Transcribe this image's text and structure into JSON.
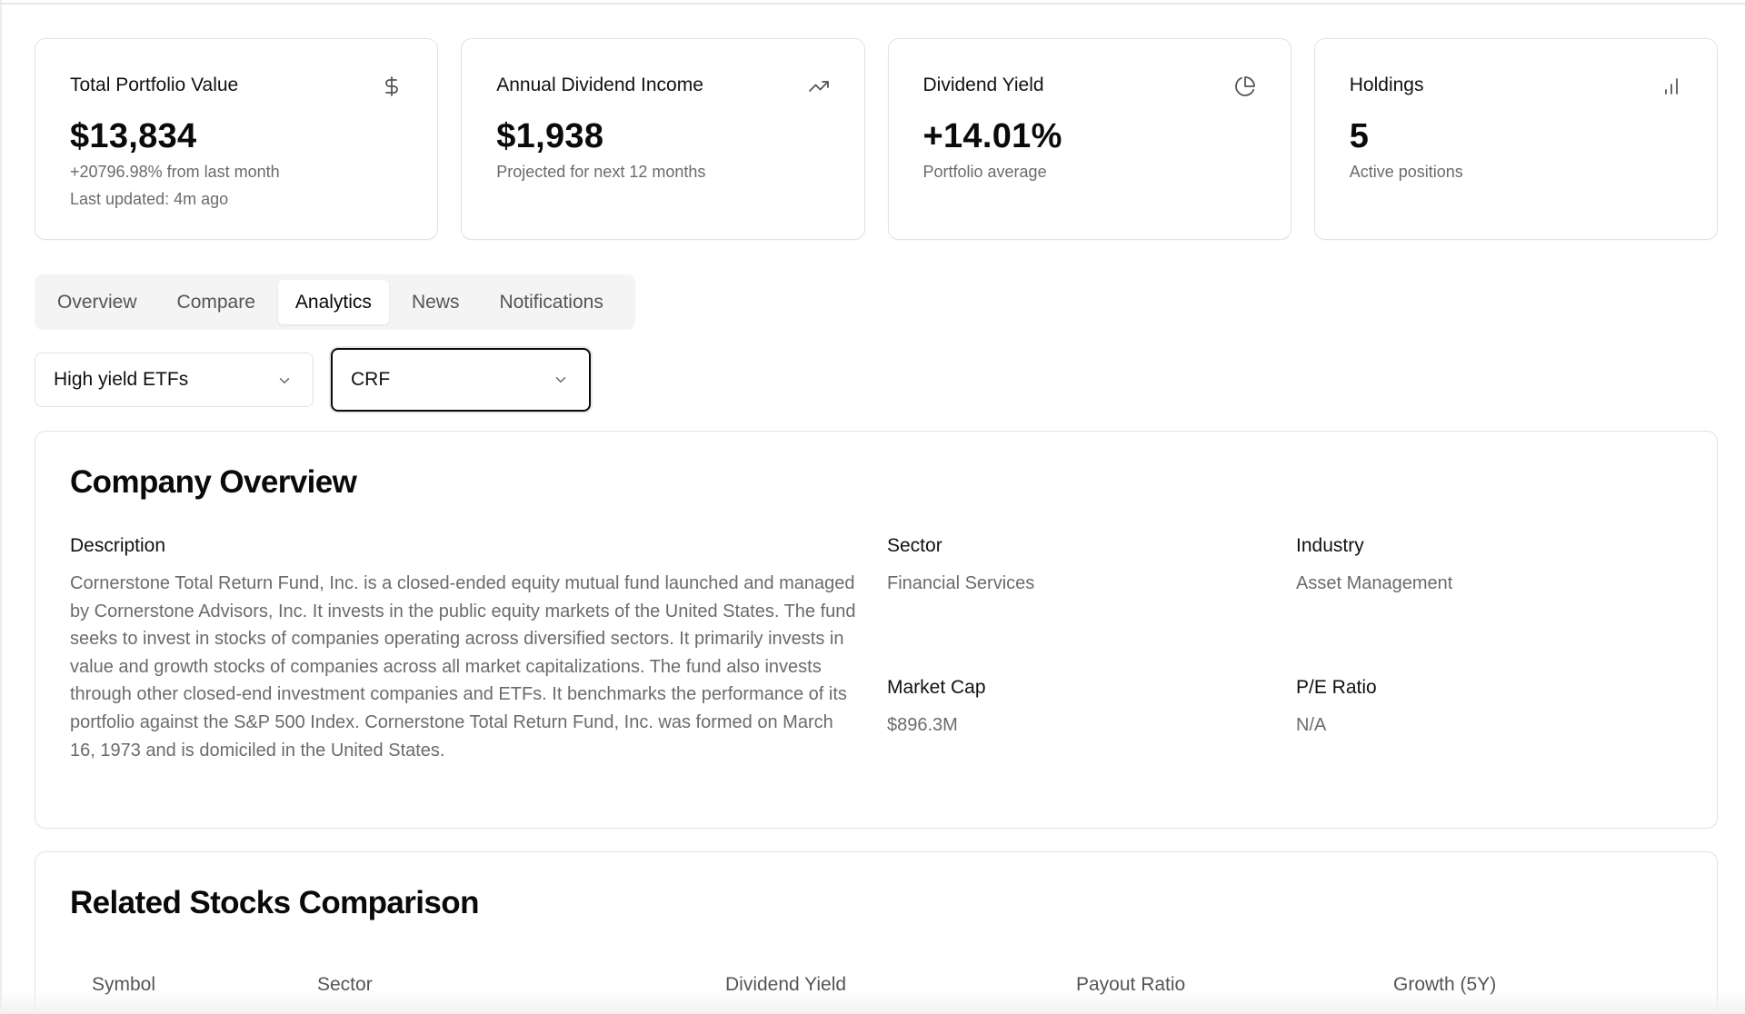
{
  "stats": [
    {
      "title": "Total Portfolio Value",
      "icon": "dollar-icon",
      "value": "$13,834",
      "sub": "+20796.98% from last month",
      "sub2": "Last updated: 4m ago"
    },
    {
      "title": "Annual Dividend Income",
      "icon": "trending-up-icon",
      "value": "$1,938",
      "sub": "Projected for next 12 months"
    },
    {
      "title": "Dividend Yield",
      "icon": "pie-chart-icon",
      "value": "+14.01%",
      "sub": "Portfolio average"
    },
    {
      "title": "Holdings",
      "icon": "bar-chart-icon",
      "value": "5",
      "sub": "Active positions"
    }
  ],
  "tabs": [
    {
      "label": "Overview",
      "active": false
    },
    {
      "label": "Compare",
      "active": false
    },
    {
      "label": "Analytics",
      "active": true
    },
    {
      "label": "News",
      "active": false
    },
    {
      "label": "Notifications",
      "active": false
    }
  ],
  "filters": {
    "list_select": "High yield ETFs",
    "symbol_select": "CRF"
  },
  "overview": {
    "title": "Company Overview",
    "description_label": "Description",
    "description": "Cornerstone Total Return Fund, Inc. is a closed-ended equity mutual fund launched and managed by Cornerstone Advisors, Inc. It invests in the public equity markets of the United States. The fund seeks to invest in stocks of companies operating across diversified sectors. It primarily invests in value and growth stocks of companies across all market capitalizations. The fund also invests through other closed-end investment companies and ETFs. It benchmarks the performance of its portfolio against the S&P 500 Index. Cornerstone Total Return Fund, Inc. was formed on March 16, 1973 and is domiciled in the United States.",
    "sector_label": "Sector",
    "sector": "Financial Services",
    "industry_label": "Industry",
    "industry": "Asset Management",
    "market_cap_label": "Market Cap",
    "market_cap": "$896.3M",
    "pe_label": "P/E Ratio",
    "pe": "N/A"
  },
  "related": {
    "title": "Related Stocks Comparison",
    "columns": [
      "Symbol",
      "Sector",
      "Dividend Yield",
      "Payout Ratio",
      "Growth (5Y)"
    ]
  }
}
